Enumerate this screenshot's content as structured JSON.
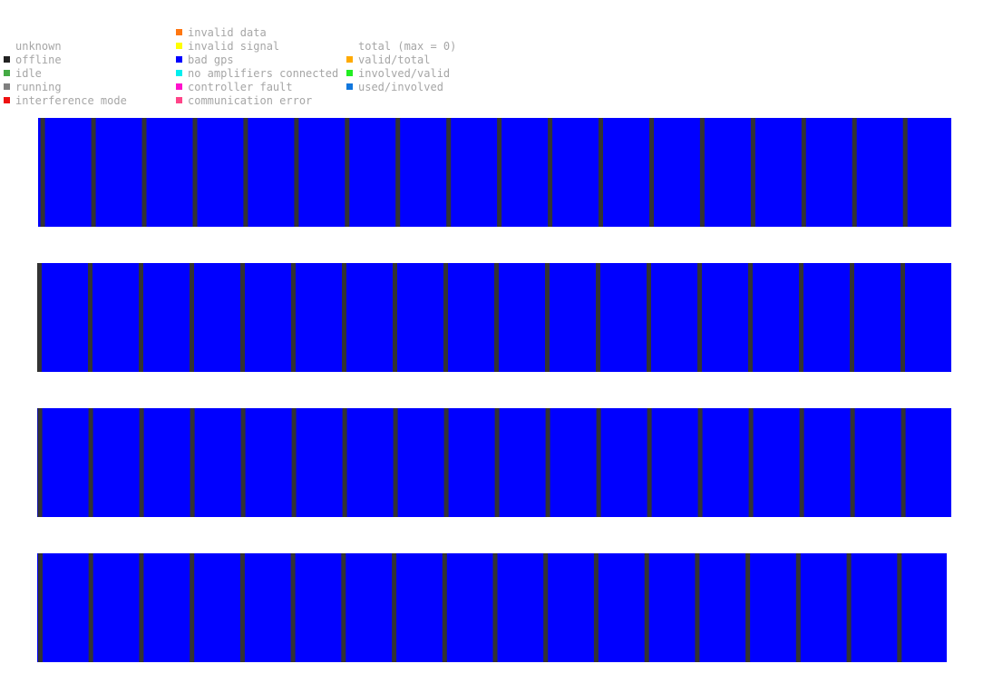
{
  "legend": {
    "status": [
      {
        "label": "unknown",
        "color": null
      },
      {
        "label": "offline",
        "color": "#222222"
      },
      {
        "label": "idle",
        "color": "#44aa44"
      },
      {
        "label": "running",
        "color": "#808080"
      },
      {
        "label": "interference mode",
        "color": "#ee1111"
      }
    ],
    "errors": [
      {
        "label": "invalid data",
        "color": "#ff7711"
      },
      {
        "label": "invalid signal",
        "color": "#ffff00"
      },
      {
        "label": "bad gps",
        "color": "#0000ff"
      },
      {
        "label": "no amplifiers connected",
        "color": "#00eeee"
      },
      {
        "label": "controller fault",
        "color": "#ff11cc"
      },
      {
        "label": "communication error",
        "color": "#ff4488"
      }
    ],
    "totals": [
      {
        "label": "total (max = 0)",
        "color": null
      },
      {
        "label": "valid/total",
        "color": "#ffaa00"
      },
      {
        "label": "involved/valid",
        "color": "#22ee22"
      },
      {
        "label": "used/involved",
        "color": "#1177dd"
      }
    ]
  },
  "chart_data": {
    "type": "heatmap",
    "description_of_encoding": "four horizontal status strips, each filled with the 'bad gps' color and separated into equal segments by thin dark 'offline' divider lines",
    "fill_color": "#0000ff",
    "divider_color": "#333333",
    "strips": [
      {
        "segments": 18,
        "first_divider_fraction": 0.047
      },
      {
        "segments": 18,
        "first_divider_fraction": 0.0
      },
      {
        "segments": 18,
        "first_divider_fraction": 0.01
      },
      {
        "segments": 18,
        "first_divider_fraction": 0.018
      }
    ]
  }
}
